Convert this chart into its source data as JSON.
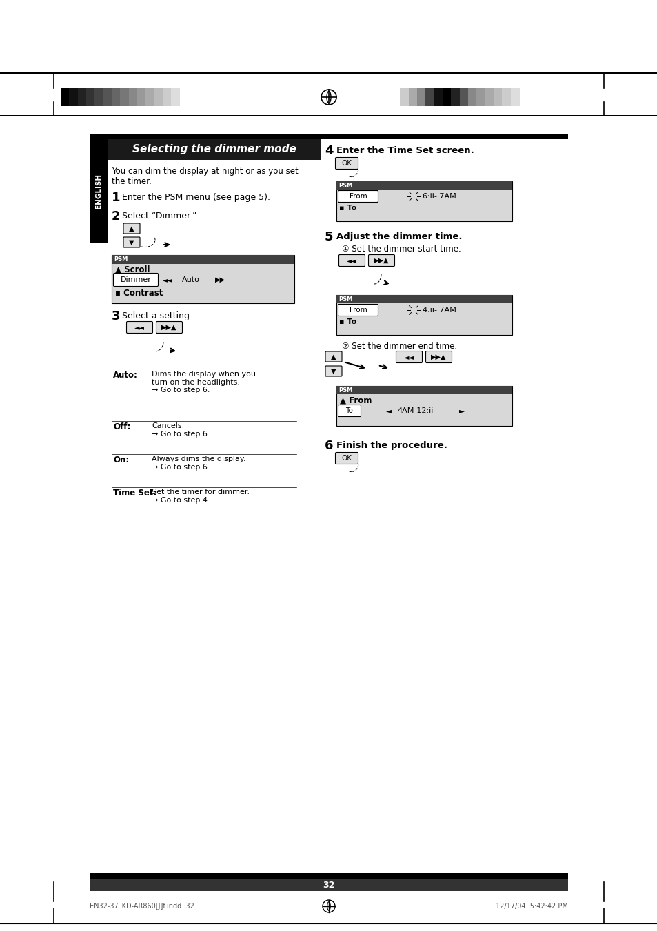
{
  "bg_color": "#ffffff",
  "page_num": "32",
  "footer_left": "EN32-37_KD-AR860[J]f.indd  32",
  "footer_right": "12/17/04  5:42:42 PM",
  "title": "Selecting the dimmer mode",
  "english_label": "ENGLISH",
  "intro_text": "You can dim the display at night or as you set\nthe timer.",
  "step1": "Enter the PSM menu (see page 5).",
  "step2": "Select “Dimmer.”",
  "step3": "Select a setting.",
  "step4": "Enter the Time Set screen.",
  "step5_main": "Adjust the dimmer time.",
  "step5_sub1": "Set the dimmer start time.",
  "step5_sub2": "Set the dimmer end time.",
  "step6": "Finish the procedure.",
  "auto_label": "Auto:",
  "auto_text": "Dims the display when you\nturn on the headlights.\n→ Go to step 6.",
  "off_label": "Off:",
  "off_text": "Cancels.\n→ Go to step 6.",
  "on_label": "On:",
  "on_text": "Always dims the display.\n→ Go to step 6.",
  "timeset_label": "Time Set:",
  "timeset_text": "Set the timer for dimmer.\n→ Go to step 4.",
  "bar_left_colors": [
    "#000000",
    "#111111",
    "#222222",
    "#333333",
    "#444444",
    "#555555",
    "#666666",
    "#777777",
    "#888888",
    "#999999",
    "#aaaaaa",
    "#bbbbbb",
    "#cccccc",
    "#dddddd",
    "#ffffff"
  ],
  "bar_right_colors": [
    "#ffffff",
    "#cccccc",
    "#aaaaaa",
    "#888888",
    "#444444",
    "#111111",
    "#000000",
    "#222222",
    "#555555",
    "#888888",
    "#999999",
    "#aaaaaa",
    "#bbbbbb",
    "#cccccc",
    "#dddddd"
  ]
}
